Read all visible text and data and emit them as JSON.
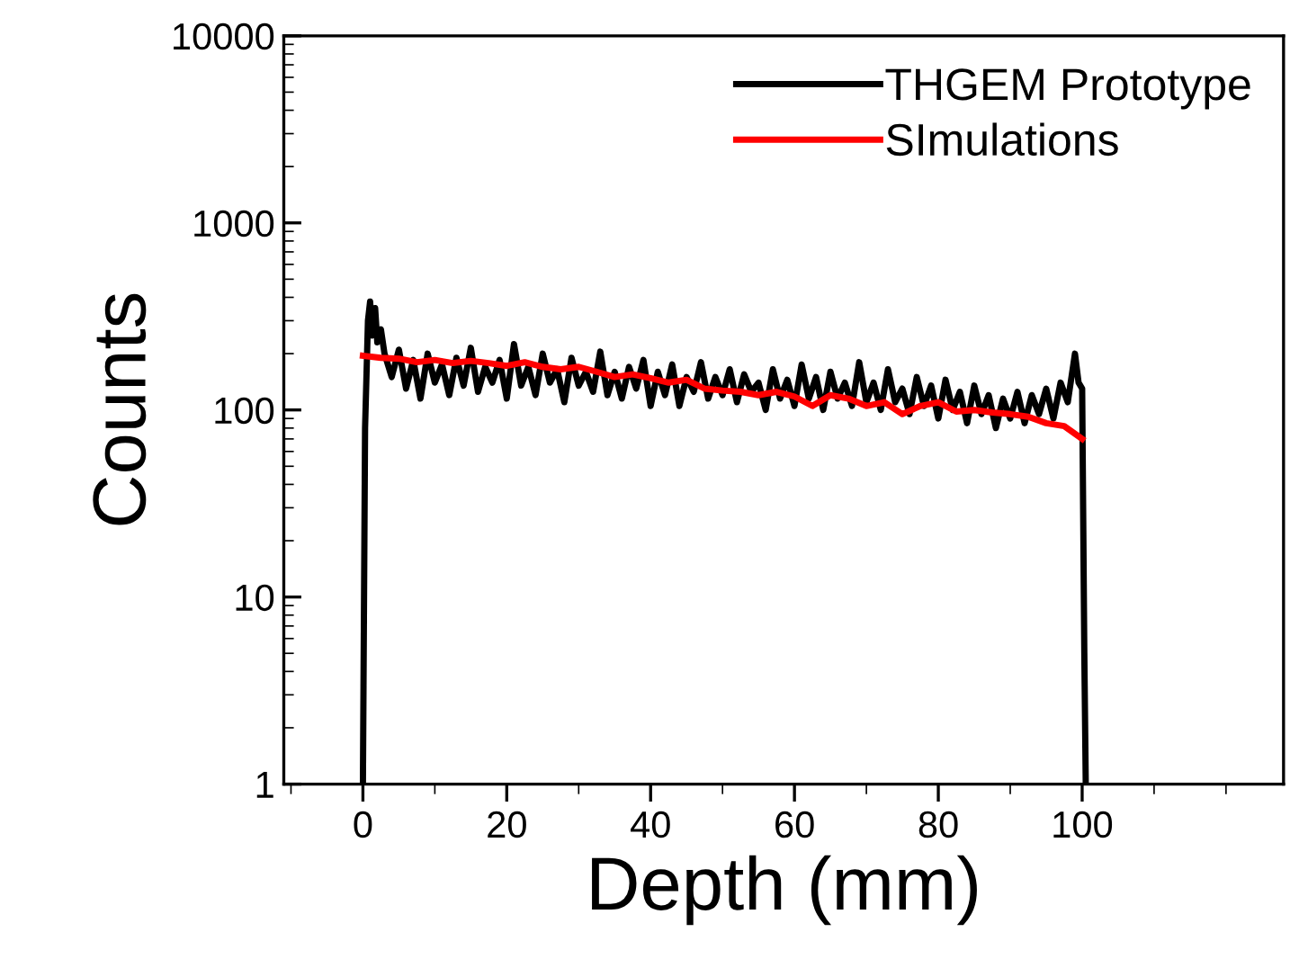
{
  "chart_data": {
    "type": "line",
    "xlabel": "Depth (mm)",
    "ylabel": "Counts",
    "log": "y",
    "xlim": [
      -11,
      128
    ],
    "ylim": [
      1,
      10000
    ],
    "xticks": [
      0,
      20,
      40,
      60,
      80,
      100
    ],
    "yticks": [
      1,
      10,
      100,
      1000,
      10000
    ],
    "grid": false,
    "legend": "top right",
    "series": [
      {
        "name": "THGEM Prototype",
        "color": "#000000",
        "x": [
          0,
          0.3,
          0.7,
          1,
          1.3,
          1.7,
          2,
          2.5,
          3,
          4,
          5,
          6,
          7,
          8,
          9,
          10,
          11,
          12,
          13,
          14,
          15,
          16,
          17,
          18,
          19,
          20,
          21,
          22,
          23,
          24,
          25,
          26,
          27,
          28,
          29,
          30,
          31,
          32,
          33,
          34,
          35,
          36,
          37,
          38,
          39,
          40,
          41,
          42,
          43,
          44,
          45,
          46,
          47,
          48,
          49,
          50,
          51,
          52,
          53,
          54,
          55,
          56,
          57,
          58,
          59,
          60,
          61,
          62,
          63,
          64,
          65,
          66,
          67,
          68,
          69,
          70,
          71,
          72,
          73,
          74,
          75,
          76,
          77,
          78,
          79,
          80,
          81,
          82,
          83,
          84,
          85,
          86,
          87,
          88,
          89,
          90,
          91,
          92,
          93,
          94,
          95,
          96,
          97,
          98,
          99,
          99.5,
          100,
          100.3,
          100.5
        ],
        "values": [
          1,
          80,
          300,
          380,
          250,
          350,
          230,
          270,
          200,
          150,
          210,
          130,
          185,
          115,
          200,
          140,
          175,
          120,
          190,
          135,
          215,
          125,
          170,
          140,
          185,
          115,
          225,
          135,
          170,
          120,
          200,
          140,
          165,
          110,
          190,
          135,
          160,
          125,
          205,
          120,
          160,
          115,
          170,
          130,
          185,
          105,
          160,
          120,
          175,
          105,
          150,
          125,
          180,
          115,
          150,
          120,
          165,
          110,
          155,
          125,
          140,
          100,
          165,
          115,
          145,
          105,
          175,
          115,
          150,
          100,
          160,
          115,
          140,
          105,
          180,
          110,
          140,
          100,
          165,
          110,
          130,
          95,
          150,
          105,
          135,
          90,
          145,
          100,
          125,
          85,
          135,
          95,
          120,
          80,
          115,
          90,
          125,
          85,
          120,
          95,
          130,
          90,
          140,
          110,
          200,
          140,
          130,
          5,
          1
        ]
      },
      {
        "name": "SImulations",
        "color": "#ff0000",
        "x": [
          0,
          2.5,
          5,
          7.5,
          10,
          12.5,
          15,
          17.5,
          20,
          22.5,
          25,
          27.5,
          30,
          32.5,
          35,
          37.5,
          40,
          42.5,
          45,
          47.5,
          50,
          52.5,
          55,
          57.5,
          60,
          62.5,
          65,
          67.5,
          70,
          72.5,
          75,
          77.5,
          80,
          82.5,
          85,
          87.5,
          90,
          92.5,
          95,
          97.5,
          100
        ],
        "values": [
          195,
          190,
          188,
          180,
          185,
          178,
          183,
          178,
          172,
          180,
          170,
          165,
          170,
          160,
          150,
          155,
          148,
          140,
          145,
          130,
          127,
          125,
          120,
          125,
          118,
          105,
          120,
          115,
          105,
          110,
          95,
          105,
          110,
          98,
          100,
          97,
          95,
          92,
          85,
          82,
          70
        ]
      }
    ]
  }
}
